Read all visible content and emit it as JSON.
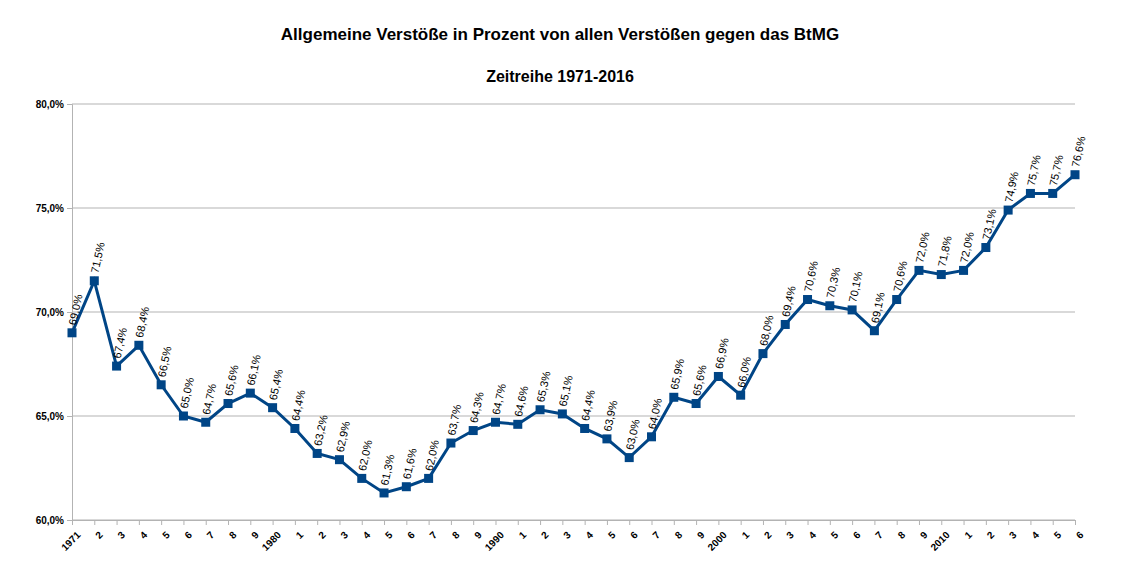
{
  "chart_data": {
    "type": "line",
    "title": "Allgemeine Verstöße in Prozent von allen Verstößen gegen das BtMG",
    "subtitle": "Zeitreihe 1971-2016",
    "categories": [
      "1971",
      "2",
      "3",
      "4",
      "5",
      "6",
      "7",
      "8",
      "9",
      "1980",
      "1",
      "2",
      "3",
      "4",
      "5",
      "6",
      "7",
      "8",
      "9",
      "1990",
      "1",
      "2",
      "3",
      "4",
      "5",
      "6",
      "7",
      "8",
      "9",
      "2000",
      "1",
      "2",
      "3",
      "4",
      "5",
      "6",
      "7",
      "8",
      "9",
      "2010",
      "1",
      "2",
      "3",
      "4",
      "5",
      "6"
    ],
    "values": [
      69.0,
      71.5,
      67.4,
      68.4,
      66.5,
      65.0,
      64.7,
      65.6,
      66.1,
      65.4,
      64.4,
      63.2,
      62.9,
      62.0,
      61.3,
      61.6,
      62.0,
      63.7,
      64.3,
      64.7,
      64.6,
      65.3,
      65.1,
      64.4,
      63.9,
      63.0,
      64.0,
      65.9,
      65.6,
      66.9,
      66.0,
      68.0,
      69.4,
      70.6,
      70.3,
      70.1,
      69.1,
      70.6,
      72.0,
      71.8,
      72.0,
      73.1,
      74.9,
      75.7,
      75.7,
      76.6
    ],
    "value_labels": [
      "69,0%",
      "71,5%",
      "67,4%",
      "68,4%",
      "66,5%",
      "65,0%",
      "64,7%",
      "65,6%",
      "66,1%",
      "65,4%",
      "64,4%",
      "63,2%",
      "62,9%",
      "62,0%",
      "61,3%",
      "61,6%",
      "62,0%",
      "63,7%",
      "64,3%",
      "64,7%",
      "64,6%",
      "65,3%",
      "65,1%",
      "64,4%",
      "63,9%",
      "63,0%",
      "64,0%",
      "65,9%",
      "65,6%",
      "66,9%",
      "66,0%",
      "68,0%",
      "69,4%",
      "70,6%",
      "70,3%",
      "70,1%",
      "69,1%",
      "70,6%",
      "72,0%",
      "71,8%",
      "72,0%",
      "73,1%",
      "74,9%",
      "75,7%",
      "75,7%",
      "76,6%"
    ],
    "color": "#004586",
    "marker": "square",
    "data_labels": true,
    "grid": true,
    "ylim": [
      60,
      80
    ],
    "yticks": [
      {
        "value": 60,
        "label": "60,0%"
      },
      {
        "value": 65,
        "label": "65,0%"
      },
      {
        "value": 70,
        "label": "70,0%"
      },
      {
        "value": 75,
        "label": "75,0%"
      },
      {
        "value": 80,
        "label": "80,0%"
      }
    ]
  }
}
